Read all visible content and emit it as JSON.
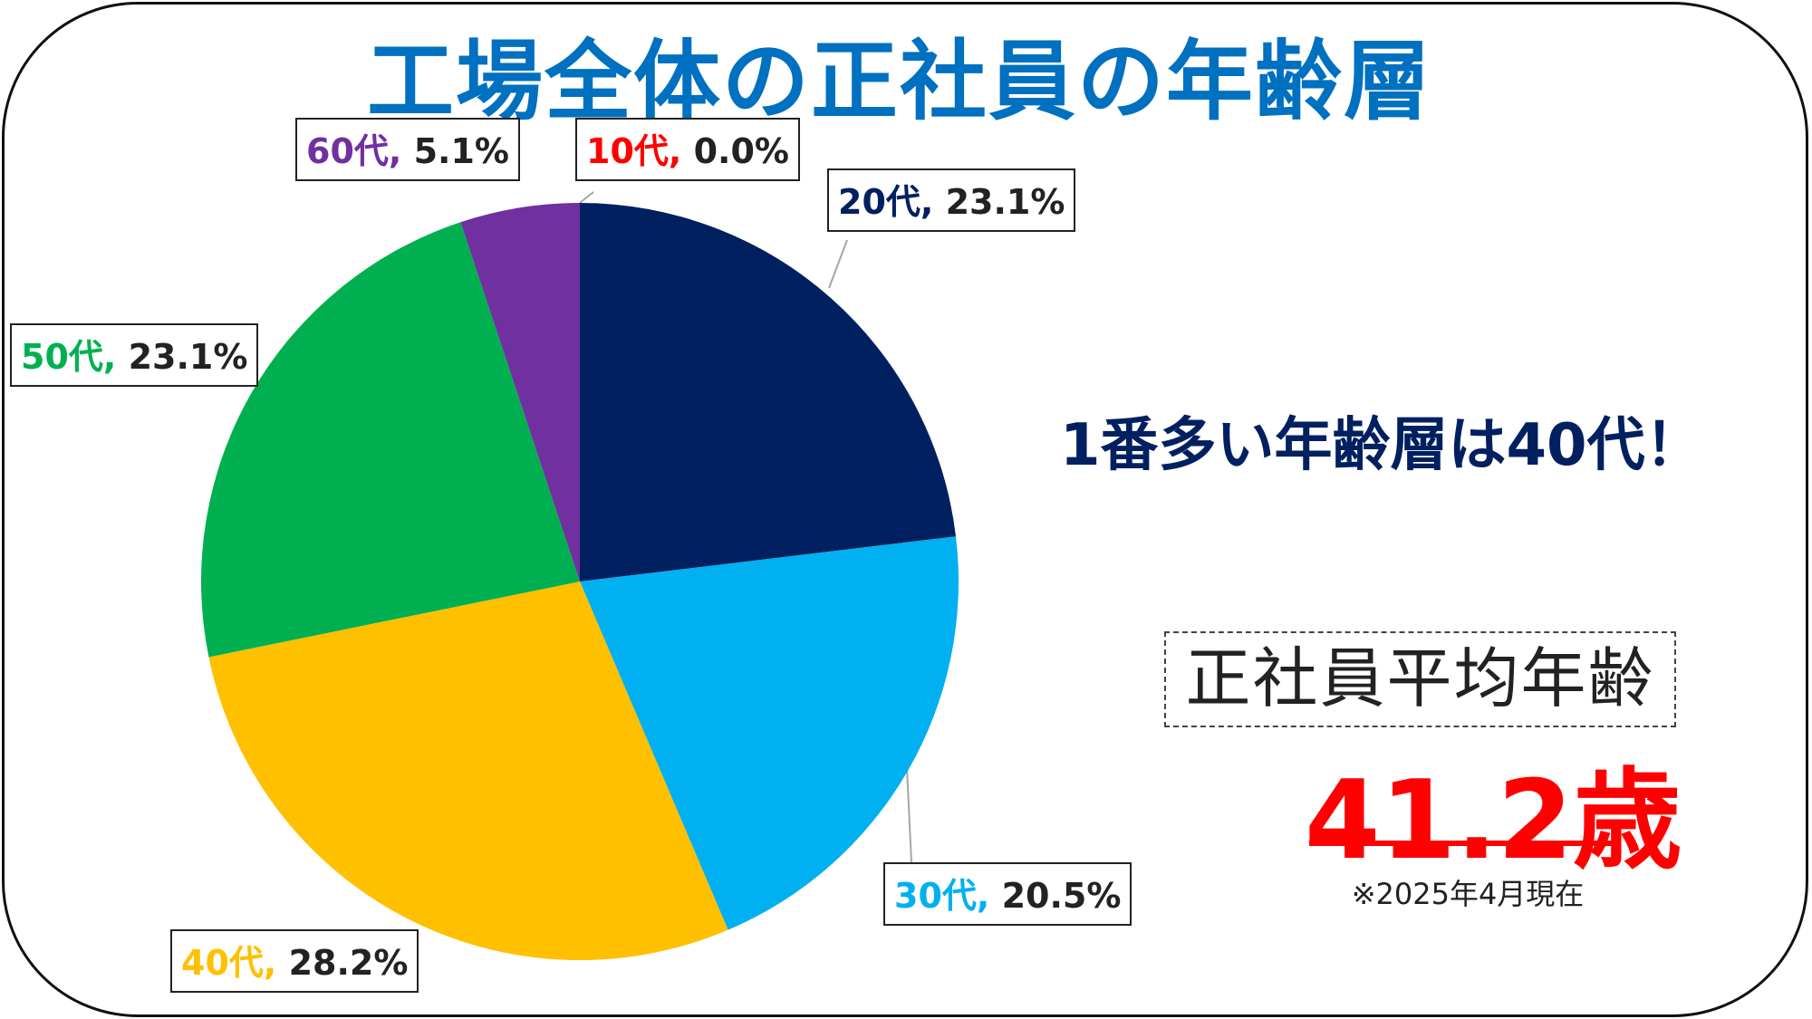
{
  "title": "工場全体の正社員の年齢層",
  "headline": "1番多い年齢層は40代！",
  "average": {
    "label": "正社員平均年齢",
    "value": "41.2歳",
    "note": "※2025年4月現在"
  },
  "colors": {
    "title": "#0070c0",
    "headline": "#002060",
    "average_value": "#ff0000"
  },
  "chart_data": {
    "type": "pie",
    "start": "12 o'clock, clockwise",
    "slices": [
      {
        "category": "10代",
        "value": 0.0,
        "label": "0.0%",
        "color": "#ff0000"
      },
      {
        "category": "20代",
        "value": 23.1,
        "label": "23.1%",
        "color": "#002060"
      },
      {
        "category": "30代",
        "value": 20.5,
        "label": "20.5%",
        "color": "#00b0f0"
      },
      {
        "category": "40代",
        "value": 28.2,
        "label": "28.2%",
        "color": "#ffc000"
      },
      {
        "category": "50代",
        "value": 23.1,
        "label": "23.1%",
        "color": "#00b050"
      },
      {
        "category": "60代",
        "value": 5.1,
        "label": "5.1%",
        "color": "#7030a0"
      }
    ]
  }
}
